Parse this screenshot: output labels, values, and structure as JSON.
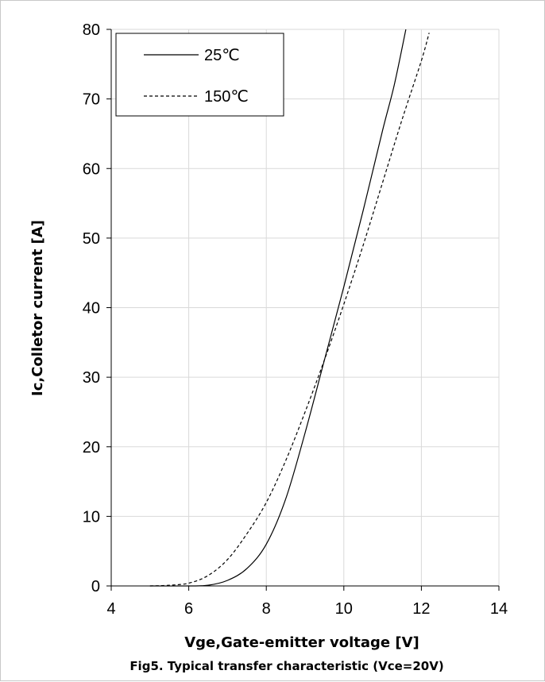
{
  "chart_data": {
    "type": "line",
    "title": "Fig5. Typical transfer characteristic (Vce=20V)",
    "xlabel": "Vge,Gate-emitter voltage [V]",
    "ylabel": "Ic,Colletor current [A]",
    "xlim": [
      4,
      14
    ],
    "ylim": [
      0,
      80
    ],
    "xticks": [
      "4",
      "6",
      "8",
      "10",
      "12",
      "14"
    ],
    "yticks": [
      "0",
      "10",
      "20",
      "30",
      "40",
      "50",
      "60",
      "70",
      "80"
    ],
    "grid": true,
    "legend_position": "top-left",
    "series": [
      {
        "name": "25℃",
        "style": "solid",
        "color": "#000000",
        "x": [
          5.0,
          6.0,
          6.5,
          7.0,
          7.5,
          8.0,
          8.5,
          9.0,
          9.5,
          10.0,
          10.5,
          11.0,
          11.3,
          11.6
        ],
        "y": [
          0.0,
          0.0,
          0.1,
          0.8,
          2.5,
          6.0,
          12.5,
          22.0,
          32.5,
          43.0,
          54.0,
          65.5,
          72.0,
          80.0
        ]
      },
      {
        "name": "150℃",
        "style": "dashed",
        "color": "#000000",
        "x": [
          5.0,
          5.5,
          6.0,
          6.5,
          7.0,
          7.5,
          8.0,
          8.5,
          9.0,
          9.5,
          10.0,
          10.5,
          11.0,
          11.5,
          12.0,
          12.2
        ],
        "y": [
          0.0,
          0.1,
          0.4,
          1.5,
          3.8,
          7.5,
          12.0,
          18.0,
          25.0,
          32.5,
          40.5,
          49.0,
          58.0,
          67.0,
          75.5,
          79.5
        ]
      }
    ]
  }
}
